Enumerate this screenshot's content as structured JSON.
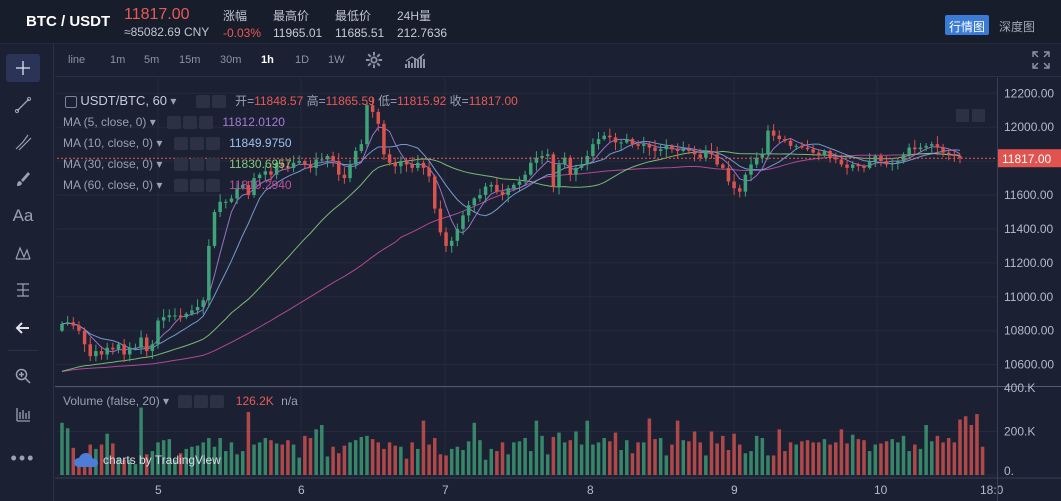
{
  "header": {
    "pair": "BTC / USDT",
    "price": "11817.00",
    "cny": "≈85082.69 CNY",
    "stats": [
      {
        "label": "涨幅",
        "value": "-0.03%",
        "red": true
      },
      {
        "label": "最高价",
        "value": "11965.01",
        "red": false
      },
      {
        "label": "最低价",
        "value": "11685.51",
        "red": false
      },
      {
        "label": "24H量",
        "value": "212.7636",
        "red": false
      }
    ],
    "tabs": [
      "行情图",
      "深度图"
    ]
  },
  "timeframes": [
    "line",
    "1m",
    "5m",
    "15m",
    "30m",
    "1h",
    "1D",
    "1W"
  ],
  "active_timeframe": "1h",
  "legend": {
    "symbol": "USDT/BTC, 60",
    "open_label": "开=",
    "open": "11848.57",
    "high_label": "高=",
    "high": "11865.59",
    "low_label": "低=",
    "low": "11815.92",
    "close_label": "收=",
    "close": "11817.00",
    "ma": [
      {
        "label": "MA (5, close, 0)",
        "value": "11812.0120",
        "color": "#a77bd6"
      },
      {
        "label": "MA (10, close, 0)",
        "value": "11849.9750",
        "color": "#7ea6e0"
      },
      {
        "label": "MA (30, close, 0)",
        "value": "11830.6957",
        "color": "#86c97a"
      },
      {
        "label": "MA (60, close, 0)",
        "value": "11819.2940",
        "color": "#c04fa0"
      }
    ],
    "volume_label": "Volume (false, 20)",
    "volume_value": "126.2K",
    "volume_na": "n/a"
  },
  "watermark": "charts by TradingView",
  "colors": {
    "up": "#3fa37a",
    "down": "#d9534f",
    "bg": "#1b2032",
    "grid": "#252b3d",
    "accent": "#3a7bd5"
  },
  "chart_data": {
    "type": "candlestick",
    "title": "USDT/BTC, 60",
    "x_ticks": [
      "5",
      "6",
      "7",
      "8",
      "9",
      "10",
      "18:0"
    ],
    "y_ticks": [
      10600,
      10800,
      11000,
      11200,
      11400,
      11600,
      11800,
      12000,
      12200
    ],
    "ylim": [
      10480,
      12290
    ],
    "last_price": 11817.0,
    "last_price_label": "11817.00",
    "volume_ticks": [
      "400.K",
      "200.K",
      "0."
    ],
    "volume_max": 400,
    "closes": [
      10840,
      10850,
      10830,
      10800,
      10720,
      10650,
      10680,
      10660,
      10700,
      10690,
      10720,
      10660,
      10700,
      10700,
      10760,
      10680,
      10720,
      10860,
      10880,
      10890,
      10890,
      10880,
      10900,
      10920,
      10940,
      10980,
      11300,
      11500,
      11560,
      11560,
      11580,
      11640,
      11660,
      11600,
      11700,
      11720,
      11740,
      11720,
      11790,
      11770,
      11760,
      11790,
      11800,
      11780,
      11760,
      11810,
      11810,
      11830,
      11800,
      11720,
      11700,
      11780,
      11860,
      11900,
      12130,
      12090,
      12020,
      11840,
      11790,
      11770,
      11800,
      11780,
      11760,
      11790,
      11760,
      11710,
      11520,
      11380,
      11300,
      11330,
      11400,
      11480,
      11540,
      11580,
      11600,
      11650,
      11660,
      11620,
      11600,
      11640,
      11660,
      11680,
      11720,
      11790,
      11820,
      11830,
      11840,
      11650,
      11780,
      11820,
      11720,
      11760,
      11780,
      11830,
      11900,
      11930,
      11950,
      11940,
      11910,
      11910,
      11930,
      11900,
      11890,
      11900,
      11880,
      11860,
      11870,
      11890,
      11870,
      11860,
      11870,
      11860,
      11840,
      11820,
      11860,
      11840,
      11780,
      11760,
      11680,
      11640,
      11620,
      11720,
      11780,
      11820,
      11840,
      11980,
      11950,
      11930,
      11920,
      11890,
      11890,
      11880,
      11870,
      11850,
      11840,
      11860,
      11820,
      11810,
      11780,
      11760,
      11780,
      11770,
      11760,
      11800,
      11830,
      11800,
      11780,
      11790,
      11800,
      11840,
      11880,
      11870,
      11880,
      11890,
      11900,
      11880,
      11850,
      11840,
      11830,
      11817
    ],
    "volumes": [
      240,
      215,
      125,
      70,
      80,
      140,
      120,
      140,
      190,
      145,
      80,
      70,
      70,
      50,
      310,
      95,
      110,
      150,
      160,
      165,
      70,
      100,
      120,
      130,
      135,
      150,
      170,
      130,
      170,
      110,
      150,
      95,
      110,
      290,
      140,
      150,
      170,
      160,
      145,
      140,
      160,
      140,
      80,
      180,
      170,
      210,
      230,
      85,
      130,
      100,
      135,
      150,
      160,
      175,
      180,
      165,
      150,
      120,
      150,
      135,
      130,
      75,
      150,
      120,
      250,
      140,
      170,
      95,
      90,
      120,
      130,
      115,
      155,
      240,
      160,
      70,
      120,
      110,
      150,
      95,
      150,
      155,
      170,
      110,
      250,
      180,
      95,
      175,
      195,
      150,
      160,
      200,
      140,
      250,
      140,
      150,
      170,
      155,
      195,
      115,
      160,
      100,
      150,
      150,
      260,
      165,
      170,
      90,
      140,
      250,
      160,
      155,
      200,
      150,
      90,
      200,
      145,
      180,
      115,
      190,
      140,
      100,
      110,
      180,
      170,
      90,
      90,
      210,
      110,
      150,
      140,
      155,
      160,
      150,
      150,
      165,
      140,
      150,
      210,
      145,
      185,
      165,
      160,
      110,
      140,
      145,
      155,
      165,
      150,
      180,
      110,
      140,
      120,
      230,
      155,
      180,
      150,
      170,
      150,
      255,
      270,
      230,
      280,
      130
    ]
  }
}
